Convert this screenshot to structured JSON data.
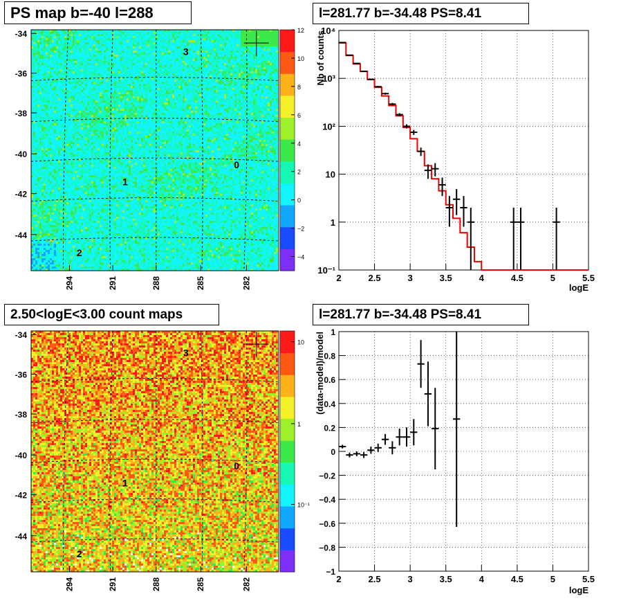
{
  "panels": {
    "top_left": {
      "title": "PS map b=-40 l=288"
    },
    "top_right": {
      "title": "l=281.77 b=-34.48 PS=8.41"
    },
    "bottom_left": {
      "title": "2.50<logE<3.00 count maps"
    },
    "bottom_right": {
      "title": "l=281.77 b=-34.48 PS=8.41"
    }
  },
  "chart_data": [
    {
      "type": "heatmap",
      "title": "PS map b=-40 l=288",
      "x_ticks": [
        "294",
        "291",
        "288",
        "285",
        "282"
      ],
      "y_ticks": [
        "-34",
        "-36",
        "-38",
        "-40",
        "-42",
        "-44"
      ],
      "colorbar": {
        "ticks": [
          "12",
          "10",
          "8",
          "6",
          "4",
          "2",
          "0",
          "−2",
          "−4"
        ],
        "range": [
          -5,
          12
        ]
      },
      "source_labels": [
        "0",
        "1",
        "2",
        "3"
      ],
      "colors": [
        "#7b2ff7",
        "#1a4cff",
        "#12a8ff",
        "#12f4ff",
        "#15f9b5",
        "#3de84a",
        "#9ef02a",
        "#f4f02a",
        "#ffb21a",
        "#ff5a14",
        "#ff1a1a"
      ]
    },
    {
      "type": "line",
      "title": "l=281.77 b=-34.48 PS=8.41",
      "xlabel": "logE",
      "ylabel": "Nb of counts",
      "xlim": [
        2,
        5.5
      ],
      "ylim": [
        0.1,
        10000
      ],
      "yscale": "log",
      "x_ticks": [
        "2",
        "2.5",
        "3",
        "3.5",
        "4",
        "4.5",
        "5",
        "5.5"
      ],
      "y_ticks": [
        "10⁻¹",
        "1",
        "10",
        "10²",
        "10³",
        "10⁴"
      ],
      "grid": true,
      "model_color": "#ee0000",
      "series": [
        {
          "type": "step",
          "bin_edges": [
            2.0,
            2.1,
            2.2,
            2.3,
            2.4,
            2.5,
            2.6,
            2.7,
            2.8,
            2.9,
            3.0,
            3.1,
            3.2,
            3.3,
            3.4,
            3.5,
            3.6,
            3.7,
            3.8,
            3.9,
            4.0,
            5.5
          ],
          "values": [
            5500,
            3000,
            2000,
            1400,
            950,
            650,
            430,
            270,
            165,
            95,
            55,
            30,
            15,
            8,
            4.5,
            2.3,
            1.2,
            0.6,
            0.3,
            0.15,
            0.1
          ]
        },
        {
          "type": "errorbar",
          "x": [
            2.05,
            2.15,
            2.25,
            2.35,
            2.45,
            2.55,
            2.65,
            2.75,
            2.85,
            2.95,
            3.05,
            3.15,
            3.25,
            3.35,
            3.45,
            3.55,
            3.65,
            3.75,
            3.85,
            4.45,
            4.55,
            5.05
          ],
          "y": [
            5600,
            3050,
            2050,
            1400,
            950,
            670,
            480,
            290,
            175,
            100,
            75,
            30,
            12,
            13,
            6,
            2,
            3,
            2,
            1,
            1,
            1,
            1
          ],
          "yerr_low": [
            75,
            55,
            45,
            37,
            31,
            26,
            22,
            17,
            13,
            10,
            9,
            6,
            4,
            4,
            2.5,
            1.2,
            1.6,
            1.2,
            0.9,
            0.9,
            0.9,
            0.9
          ],
          "yerr_high": [
            75,
            55,
            45,
            37,
            31,
            26,
            22,
            17,
            13,
            10,
            9,
            6,
            4,
            4,
            2.5,
            1.5,
            1.9,
            1.5,
            1.0,
            1.0,
            1.0,
            1.0
          ]
        }
      ]
    },
    {
      "type": "heatmap",
      "title": "2.50<logE<3.00 count maps",
      "x_ticks": [
        "294",
        "291",
        "288",
        "285",
        "282"
      ],
      "y_ticks": [
        "-34",
        "-36",
        "-38",
        "-40",
        "-42",
        "-44"
      ],
      "colorbar": {
        "ticks": [
          "10",
          "1",
          "10⁻¹"
        ],
        "scale": "log"
      },
      "source_labels": [
        "0",
        "1",
        "2",
        "3"
      ],
      "colors": [
        "#7b2ff7",
        "#1a4cff",
        "#12a8ff",
        "#12f4ff",
        "#15f9b5",
        "#3de84a",
        "#9ef02a",
        "#f4f02a",
        "#ffb21a",
        "#ff5a14",
        "#ff1a1a"
      ]
    },
    {
      "type": "scatter",
      "title": "l=281.77 b=-34.48 PS=8.41",
      "xlabel": "logE",
      "ylabel": "(data-model)/model",
      "xlim": [
        2,
        5.5
      ],
      "ylim": [
        -1,
        1
      ],
      "x_ticks": [
        "2",
        "2.5",
        "3",
        "3.5",
        "4",
        "4.5",
        "5",
        "5.5"
      ],
      "y_ticks": [
        "1",
        "0.8",
        "0.6",
        "0.4",
        "0.2",
        "0",
        "−0.2",
        "−0.4",
        "−0.6",
        "−0.8",
        "−1"
      ],
      "grid": true,
      "series": [
        {
          "type": "errorbar",
          "x": [
            2.05,
            2.15,
            2.25,
            2.35,
            2.45,
            2.55,
            2.65,
            2.75,
            2.85,
            2.95,
            3.05,
            3.15,
            3.25,
            3.35,
            3.65
          ],
          "y": [
            0.04,
            -0.03,
            -0.02,
            -0.03,
            0.01,
            0.03,
            0.1,
            0.03,
            0.12,
            0.12,
            0.16,
            0.73,
            0.48,
            0.19,
            0.27
          ],
          "yerr": [
            0.015,
            0.02,
            0.02,
            0.025,
            0.03,
            0.035,
            0.045,
            0.055,
            0.07,
            0.08,
            0.11,
            0.2,
            0.27,
            0.34,
            0.9
          ]
        }
      ]
    }
  ]
}
